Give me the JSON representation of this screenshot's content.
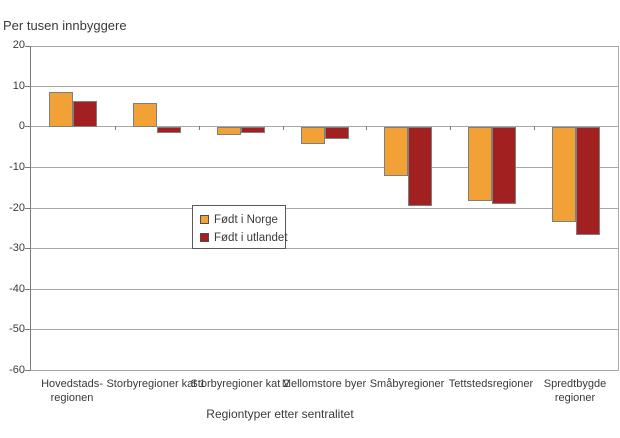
{
  "title": "Per tusen innbyggere",
  "x_axis_title": "Regiontyper etter sentralitet",
  "colors": {
    "born_in_norway": "#F1A136",
    "born_abroad": "#A32020",
    "gridline": "#A8A8A8",
    "axis": "#7A7A7A",
    "text": "#3A3A3A",
    "bar_outline": "#7F7F7F"
  },
  "chart_data": {
    "type": "bar",
    "title": "Per tusen innbyggere",
    "xlabel": "Regiontyper etter sentralitet",
    "ylabel": "Per tusen innbyggere",
    "categories": [
      "Hovedstadsregionen",
      "Storbyregioner kat 1",
      "Storbyregioner kat 2",
      "Mellomstore byer",
      "Småbyregioner",
      "Tettstedsregioner",
      "Spredtbygde regioner"
    ],
    "category_display_lines": [
      [
        "Hovedstads-",
        "regionen"
      ],
      [
        "Storbyregioner kat 1"
      ],
      [
        "Storbyregioner kat 2"
      ],
      [
        "Mellomstore byer"
      ],
      [
        "Småbyregioner"
      ],
      [
        "Tettstedsregioner"
      ],
      [
        "Spredtbygde",
        "regioner"
      ]
    ],
    "series": [
      {
        "name": "Født i Norge",
        "color": "#F1A136",
        "values": [
          8.6,
          6.0,
          -2.0,
          -4.0,
          -12.0,
          -18.2,
          -23.3
        ]
      },
      {
        "name": "Født i utlandet",
        "color": "#A32020",
        "values": [
          6.4,
          -1.4,
          -1.4,
          -2.8,
          -19.3,
          -19.0,
          -26.5
        ]
      }
    ],
    "ylim": [
      -60,
      20
    ],
    "yticks": [
      20,
      10,
      0,
      -10,
      -20,
      -30,
      -40,
      -50,
      -60
    ],
    "grid": true,
    "legend_position": "inside-left-middle"
  }
}
